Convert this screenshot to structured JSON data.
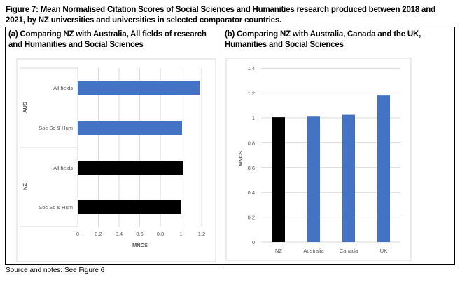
{
  "title": "Figure 7: Mean Normalised Citation Scores of Social Sciences and Humanities research produced between 2018 and 2021, by NZ universities and universities in selected comparator countries.",
  "footer": "Source and notes: See Figure 6",
  "colors": {
    "nz": "#000000",
    "other": "#4472c4"
  },
  "chart_data": [
    {
      "type": "bar",
      "orientation": "horizontal",
      "title": "(a) Comparing NZ with Australia, All fields of research and Humanities and Social Sciences",
      "groups": [
        "AUS",
        "NZ"
      ],
      "categories": [
        {
          "group": "AUS",
          "label": "All fields",
          "value": 1.18
        },
        {
          "group": "AUS",
          "label": "Soc Sc & Hum",
          "value": 1.01
        },
        {
          "group": "NZ",
          "label": "All fields",
          "value": 1.02
        },
        {
          "group": "NZ",
          "label": "Soc Sc & Hum",
          "value": 1.0
        }
      ],
      "xlabel": "MNCS",
      "xlim": [
        0,
        1.2
      ],
      "xticks": [
        "0",
        "0.2",
        "0.4",
        "0.6",
        "0.8",
        "1",
        "1.2"
      ],
      "grid": true
    },
    {
      "type": "bar",
      "orientation": "vertical",
      "title": "(b) Comparing NZ with Australia, Canada and the UK, Humanities and Social Sciences",
      "categories": [
        "NZ",
        "Australia",
        "Canada",
        "UK"
      ],
      "values": [
        1.005,
        1.01,
        1.025,
        1.18
      ],
      "ylabel": "MNCS",
      "ylim": [
        0,
        1.4
      ],
      "yticks": [
        "0",
        "0.2",
        "0.4",
        "0.6",
        "0.8",
        "1",
        "1.2",
        "1.4"
      ],
      "grid": true
    }
  ]
}
